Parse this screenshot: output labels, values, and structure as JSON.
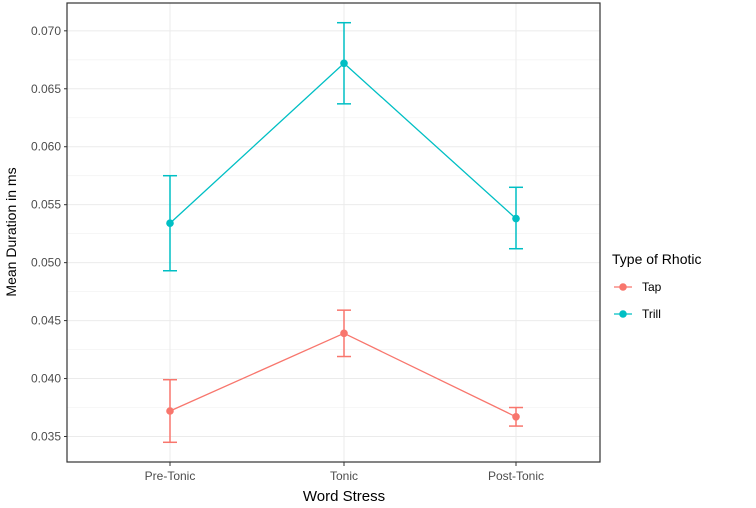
{
  "chart_data": {
    "type": "line",
    "title": "",
    "xlabel": "Word Stress",
    "ylabel": "Mean Duration in ms",
    "categories": [
      "Pre-Tonic",
      "Tonic",
      "Post-Tonic"
    ],
    "ylim": [
      0.0328,
      0.0724
    ],
    "yticks": [
      "0.035",
      "0.040",
      "0.045",
      "0.050",
      "0.055",
      "0.060",
      "0.065",
      "0.070"
    ],
    "grid": true,
    "legend": {
      "title": "Type of Rhotic",
      "placement": "right"
    },
    "series": [
      {
        "name": "Tap",
        "color": "#F8766D",
        "values": [
          0.0372,
          0.0439,
          0.0367
        ],
        "lower": [
          0.0345,
          0.0419,
          0.0359
        ],
        "upper": [
          0.0399,
          0.0459,
          0.0375
        ]
      },
      {
        "name": "Trill",
        "color": "#00BFC4",
        "values": [
          0.0534,
          0.0672,
          0.0538
        ],
        "lower": [
          0.0493,
          0.0637,
          0.0512
        ],
        "upper": [
          0.0575,
          0.0707,
          0.0565
        ]
      }
    ]
  }
}
